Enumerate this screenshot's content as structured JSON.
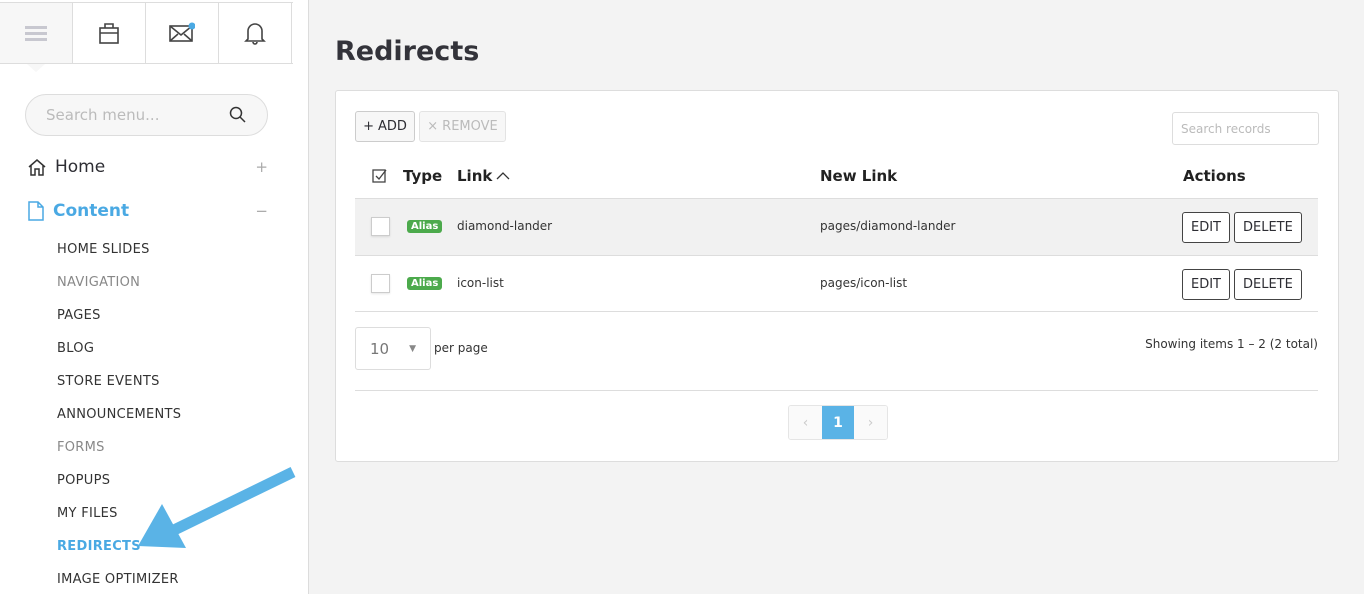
{
  "sidebar": {
    "search_placeholder": "Search menu...",
    "nav": [
      {
        "label": "Home",
        "toggle": "+"
      },
      {
        "label": "Content",
        "toggle": "−"
      }
    ],
    "content_items": [
      {
        "label": "HOME SLIDES",
        "state": "normal"
      },
      {
        "label": "NAVIGATION",
        "state": "dim"
      },
      {
        "label": "PAGES",
        "state": "normal"
      },
      {
        "label": "BLOG",
        "state": "normal"
      },
      {
        "label": "STORE EVENTS",
        "state": "normal"
      },
      {
        "label": "ANNOUNCEMENTS",
        "state": "normal"
      },
      {
        "label": "FORMS",
        "state": "dim"
      },
      {
        "label": "POPUPS",
        "state": "normal"
      },
      {
        "label": "MY FILES",
        "state": "normal"
      },
      {
        "label": "REDIRECTS",
        "state": "active"
      },
      {
        "label": "IMAGE OPTIMIZER",
        "state": "normal"
      }
    ]
  },
  "page": {
    "title": "Redirects"
  },
  "toolbar": {
    "add_label": "ADD",
    "remove_label": "REMOVE",
    "search_placeholder": "Search records"
  },
  "table": {
    "headers": {
      "type": "Type",
      "link": "Link",
      "new_link": "New Link",
      "actions": "Actions"
    },
    "rows": [
      {
        "type": "Alias",
        "link": "diamond-lander",
        "new_link": "pages/diamond-lander",
        "edit": "EDIT",
        "delete": "DELETE"
      },
      {
        "type": "Alias",
        "link": "icon-list",
        "new_link": "pages/icon-list",
        "edit": "EDIT",
        "delete": "DELETE"
      }
    ]
  },
  "footer": {
    "per_page_value": "10",
    "per_page_label": "per page",
    "showing": "Showing items 1 – 2 (2 total)",
    "current_page": "1"
  },
  "colors": {
    "accent": "#4aa9e3",
    "badge": "#4caa4c",
    "arrow": "#5ab3e6"
  }
}
